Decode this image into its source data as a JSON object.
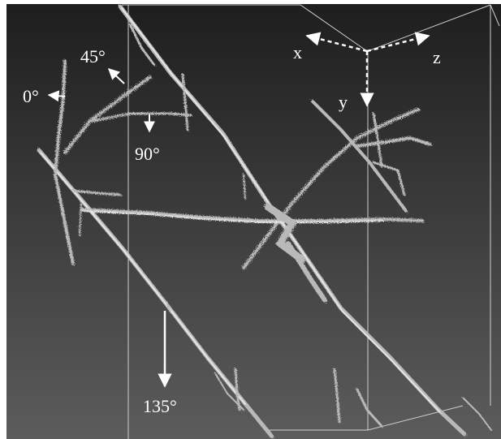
{
  "image": {
    "background_top": "#1e1e1e",
    "background_bottom": "#5c5c5c",
    "crack_color": "#b9b9b9",
    "annotation_color": "#ffffff"
  },
  "axes": {
    "x_label": "x",
    "y_label": "y",
    "z_label": "z"
  },
  "angles": {
    "a0": "0°",
    "a45": "45°",
    "a90": "90°",
    "a135": "135°"
  }
}
